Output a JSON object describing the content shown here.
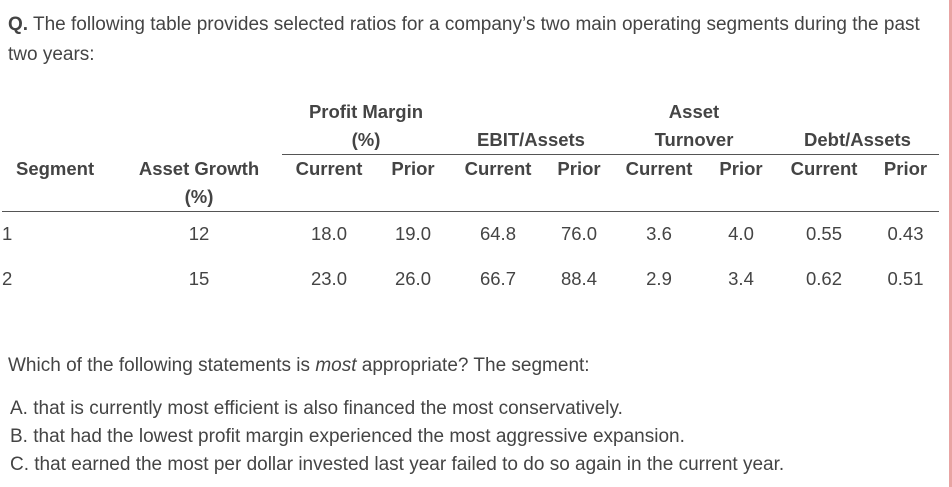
{
  "question": {
    "prefix": "Q.",
    "text": " The following table provides selected ratios for a company’s two main operating segments during the past two years:"
  },
  "table": {
    "groups": {
      "profit_margin": [
        "Profit Margin",
        "(%)"
      ],
      "ebit_assets": "EBIT/Assets",
      "asset_turnover": [
        "Asset",
        "Turnover"
      ],
      "debt_assets": "Debt/Assets"
    },
    "columns": {
      "segment": "Segment",
      "asset_growth": [
        "Asset Growth",
        "(%)"
      ],
      "current": "Current",
      "prior": "Prior"
    },
    "rows": [
      {
        "segment": "1",
        "asset_growth": "12",
        "pm_current": "18.0",
        "pm_prior": "19.0",
        "ea_current": "64.8",
        "ea_prior": "76.0",
        "at_current": "3.6",
        "at_prior": "4.0",
        "da_current": "0.55",
        "da_prior": "0.43"
      },
      {
        "segment": "2",
        "asset_growth": "15",
        "pm_current": "23.0",
        "pm_prior": "26.0",
        "ea_current": "66.7",
        "ea_prior": "88.4",
        "at_current": "2.9",
        "at_prior": "3.4",
        "da_current": "0.62",
        "da_prior": "0.51"
      }
    ]
  },
  "prompt": {
    "before": "Which of the following statements is ",
    "emphasis": "most",
    "after": " appropriate? The segment:"
  },
  "options": [
    "A. that is currently most efficient is also financed the most conservatively.",
    "B. that had the lowest profit margin experienced the most aggressive expansion.",
    "C. that earned the most per dollar invested last year failed to do so again in the current year."
  ],
  "colors": {
    "text": "#444444",
    "rule": "#555555",
    "right_border": "#e9a3a3"
  }
}
